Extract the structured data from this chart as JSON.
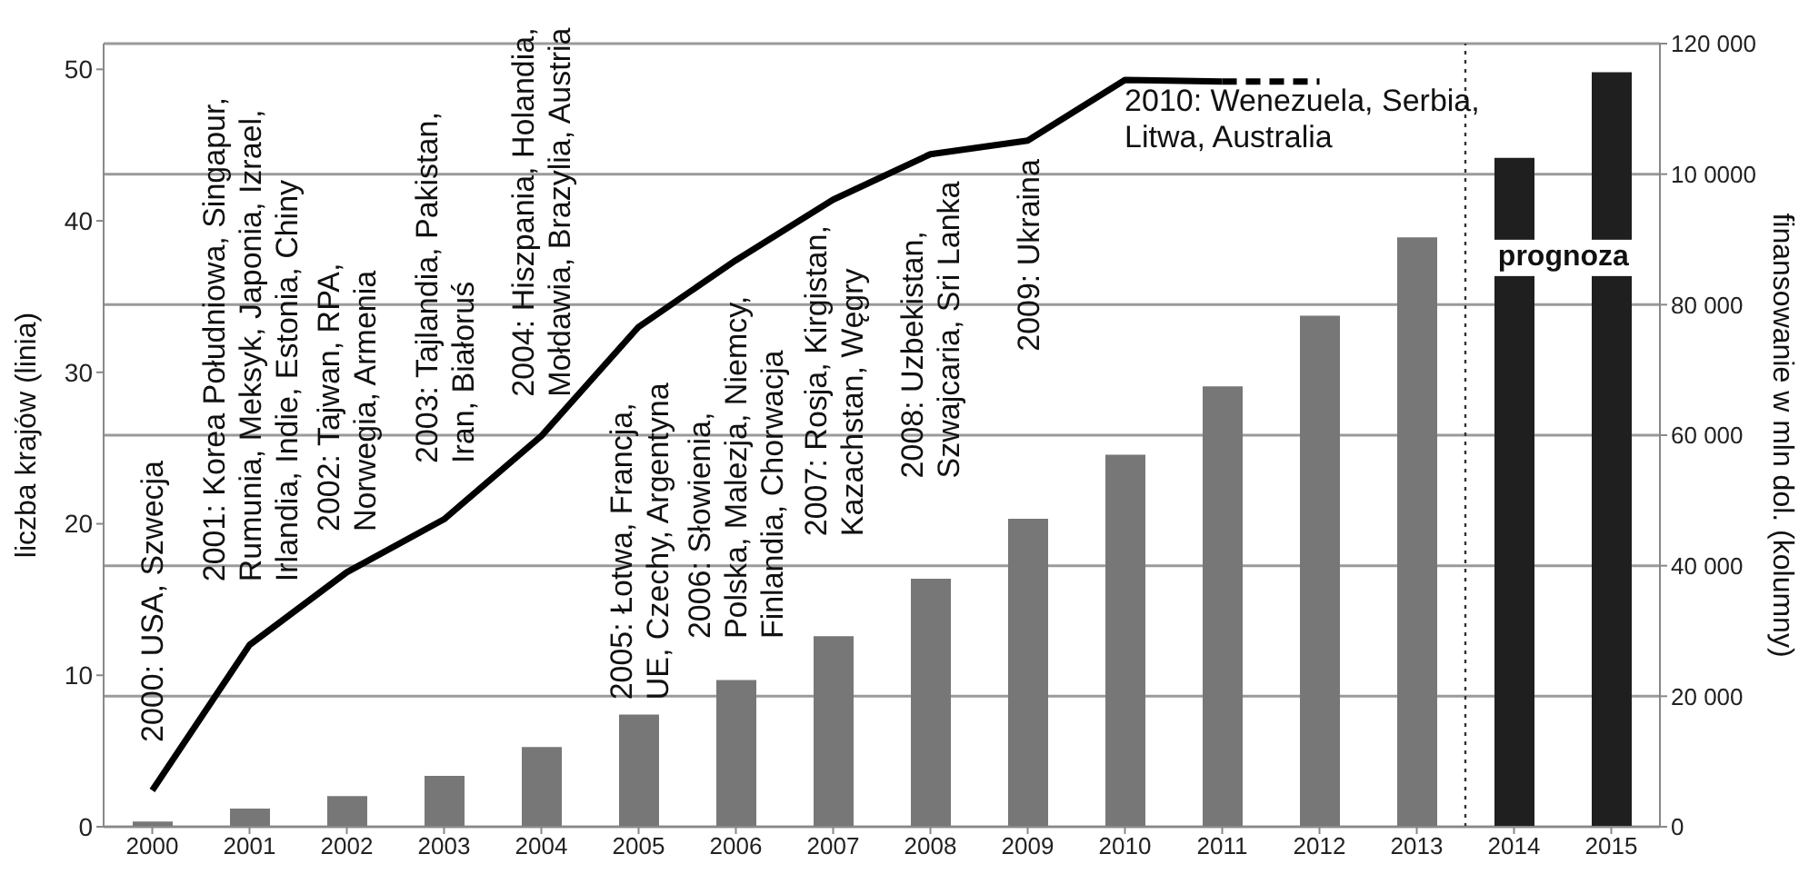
{
  "chart_data": {
    "type": "bar",
    "xlabel": null,
    "ylabel": "liczba krajów (linia)",
    "y2label": "finansowanie w mln dol. (kolumny)",
    "x": [
      2000,
      2001,
      2002,
      2003,
      2004,
      2005,
      2006,
      2007,
      2008,
      2009,
      2010,
      2011,
      2012,
      2013,
      2014,
      2015
    ],
    "xlim": [
      1999.5,
      2015.5
    ],
    "xticks": [
      2000,
      2001,
      2002,
      2003,
      2004,
      2005,
      2006,
      2007,
      2008,
      2009,
      2010,
      2011,
      2012,
      2013,
      2014,
      2015
    ],
    "ylim": [
      0,
      51.7
    ],
    "yticks": [
      0,
      10,
      20,
      30,
      40,
      50
    ],
    "y2lim": [
      0,
      120000
    ],
    "y2ticks": [
      {
        "value": 0,
        "label": "0"
      },
      {
        "value": 20000,
        "label": "20 000"
      },
      {
        "value": 40000,
        "label": "40 000"
      },
      {
        "value": 60000,
        "label": "60 000"
      },
      {
        "value": 80000,
        "label": "80 000"
      },
      {
        "value": 100000,
        "label": "10 0000"
      },
      {
        "value": 120000,
        "label": "120 000"
      }
    ],
    "grid": "y2",
    "series": [
      {
        "axis": "y2",
        "color": "#777777",
        "colors": [
          "#777777",
          "#777777",
          "#777777",
          "#777777",
          "#777777",
          "#777777",
          "#777777",
          "#777777",
          "#777777",
          "#777777",
          "#777777",
          "#777777",
          "#777777",
          "#777777",
          "#1f1f1f",
          "#1f1f1f"
        ],
        "values": [
          800,
          2800,
          4700,
          7800,
          12200,
          17200,
          22500,
          29200,
          38000,
          47200,
          57000,
          67500,
          78300,
          90300,
          102500,
          115600
        ]
      },
      {
        "type": "line",
        "axis": "y",
        "color": "#000000",
        "line_style": "solid",
        "x": [
          2000,
          2001,
          2002,
          2003,
          2004,
          2005,
          2006,
          2007,
          2008,
          2009,
          2010,
          2011
        ],
        "values": [
          2.4,
          12.0,
          16.8,
          20.3,
          25.8,
          33.0,
          37.4,
          41.4,
          44.4,
          45.3,
          49.3,
          49.2
        ]
      },
      {
        "type": "line",
        "axis": "y",
        "color": "#000000",
        "line_style": "dashed",
        "x": [
          2011,
          2012
        ],
        "values": [
          49.2,
          49.2
        ]
      }
    ],
    "ref_lines": [
      {
        "axis": "x",
        "value": 2013.5,
        "line_style": "dotted",
        "color": "#333333"
      }
    ],
    "annotations": [
      "2000: USA, Szwecja",
      "2001: Korea Południowa, Singapur,\nRumunia, Meksyk, Japonia, Izrael,\nIrlandia, Indie, Estonia, Chiny",
      "2002: Tajwan, RPA,\nNorwegia, Armenia",
      "2003: Tajlandia, Pakistan,\nIran, Białoruś",
      "2004: Hiszpania, Holandia,\nMołdawia, Brazylia, Austria",
      "2005: Łotwa, Francja,\nUE, Czechy, Argentyna",
      "2006: Słowienia,\nPolska, Malezja, Niemcy,\nFinlandia, Chorwacja",
      "2007: Rosja, Kirgistan,\nKazachstan, Węgry",
      "2008: Uzbekistan,\nSzwajcaria, Sri Lanka",
      "2009: Ukraina",
      "2010: Wenezuela, Serbia,\nLitwa, Australia",
      "prognoza"
    ]
  }
}
